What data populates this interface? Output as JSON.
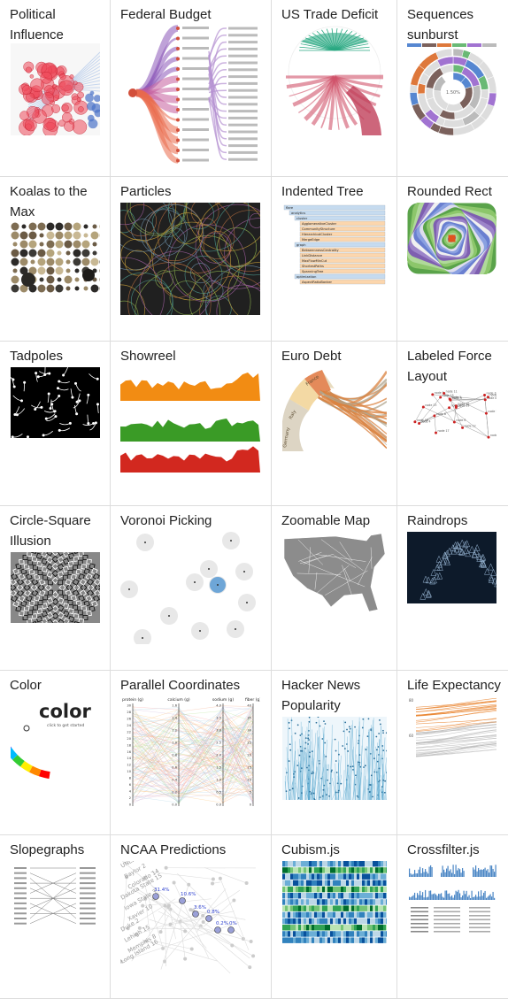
{
  "gallery": {
    "items": [
      {
        "title": "Political Influence",
        "icon": "political-influence-thumbnail"
      },
      {
        "title": "Federal Budget",
        "icon": "federal-budget-thumbnail"
      },
      {
        "title": "US Trade Deficit",
        "icon": "us-trade-deficit-thumbnail"
      },
      {
        "title": "Sequences sunburst",
        "icon": "sequences-sunburst-thumbnail"
      },
      {
        "title": "Koalas to the Max",
        "icon": "koalas-thumbnail"
      },
      {
        "title": "Particles",
        "icon": "particles-thumbnail"
      },
      {
        "title": "Indented Tree",
        "icon": "indented-tree-thumbnail"
      },
      {
        "title": "Rounded Rect",
        "icon": "rounded-rect-thumbnail"
      },
      {
        "title": "Tadpoles",
        "icon": "tadpoles-thumbnail"
      },
      {
        "title": "Showreel",
        "icon": "showreel-thumbnail"
      },
      {
        "title": "Euro Debt",
        "icon": "euro-debt-thumbnail"
      },
      {
        "title": "Labeled Force Layout",
        "icon": "labeled-force-thumbnail"
      },
      {
        "title": "Circle-Square Illusion",
        "icon": "circle-square-thumbnail"
      },
      {
        "title": "Voronoi Picking",
        "icon": "voronoi-thumbnail"
      },
      {
        "title": "Zoomable Map",
        "icon": "zoomable-map-thumbnail"
      },
      {
        "title": "Raindrops",
        "icon": "raindrops-thumbnail"
      },
      {
        "title": "Color",
        "icon": "color-thumbnail"
      },
      {
        "title": "Parallel Coordinates",
        "icon": "parallel-coordinates-thumbnail"
      },
      {
        "title": "Hacker News Popularity",
        "icon": "hacker-news-thumbnail"
      },
      {
        "title": "Life Expectancy",
        "icon": "life-expectancy-thumbnail"
      },
      {
        "title": "Slopegraphs",
        "icon": "slopegraphs-thumbnail"
      },
      {
        "title": "NCAA Predictions",
        "icon": "ncaa-thumbnail"
      },
      {
        "title": "Cubism.js",
        "icon": "cubism-thumbnail"
      },
      {
        "title": "Crossfilter.js",
        "icon": "crossfilter-thumbnail"
      }
    ]
  },
  "thumb_text": {
    "color_word": "color",
    "color_sub": "click to get started",
    "sunburst_pct": "1.50%",
    "ncaa_pcts": [
      "31.4%",
      "10.6%",
      "3.6%",
      "0.8%",
      "0.2%",
      "0%"
    ],
    "ncaa_teams": [
      "UNLV",
      "Baylor 2",
      "Colorado 14",
      "Dakota State 15",
      "Iowa State 3",
      "Xavier 10",
      "Duke 2",
      "Lehigh 15",
      "Memphis 8",
      "Long Island 16"
    ],
    "pc_axes": [
      "protein (g)",
      "calcium (g)",
      "sodium (g)",
      "fiber (g)"
    ],
    "pc_ticks": [
      "30",
      "28",
      "26",
      "24",
      "22",
      "20",
      "18",
      "16",
      "14",
      "12",
      "10",
      "8",
      "6",
      "4",
      "2",
      "0"
    ],
    "pc_ticks2": [
      "1.6",
      "1.4",
      "1.2",
      "1.0",
      "0.8",
      "0.6",
      "0.4",
      "0.2",
      "0.0"
    ],
    "pc_ticks3": [
      "4.0",
      "3.5",
      "3.0",
      "2.5",
      "2.0",
      "1.5",
      "1.0",
      "0.5",
      "0.0"
    ],
    "pc_ticks4": [
      "40",
      "35",
      "30",
      "25",
      "20",
      "15",
      "10",
      "5",
      "0"
    ],
    "euro_labels": [
      "Germany",
      "Italy",
      "France"
    ],
    "tree_labels": [
      "flare",
      "analytics",
      "cluster",
      "AgglomerativeCluster",
      "CommunityStructure",
      "HierarchicalCluster",
      "MergeEdge",
      "graph",
      "BetweennessCentrality",
      "LinkDistance",
      "MaxFlowMinCut",
      "ShortestPaths",
      "SpanningTree",
      "optimization",
      "AspectRatioBanker"
    ],
    "force_labels": [
      "node 0",
      "node 1",
      "node 2",
      "node 3",
      "node 4",
      "node 5",
      "node 6",
      "node 7",
      "node 8",
      "node 9",
      "node 10",
      "node 11",
      "node 12",
      "node 13",
      "node 14",
      "node 15",
      "node 16",
      "node 17",
      "node 18",
      "node 19"
    ],
    "life_ticks": [
      "80",
      "60"
    ]
  },
  "colors": {
    "title_text": "#222222",
    "border": "#dddddd",
    "showreel_orange": "#f28c13",
    "showreel_green": "#3a9b26",
    "showreel_red": "#d2281f",
    "map_gray": "#8c8c8c",
    "voronoi_blue": "#6ea6d7"
  }
}
